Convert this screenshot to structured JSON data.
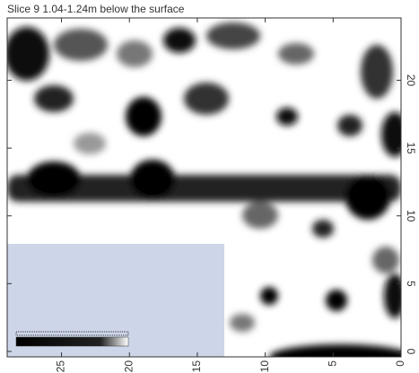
{
  "chart_data": {
    "type": "heatmap",
    "title": "Slice 9 1.04-1.24m below the surface",
    "xlim": [
      29,
      0
    ],
    "xticks": [
      25,
      20,
      15,
      10,
      5,
      0
    ],
    "ylim": [
      -0.4,
      24.6
    ],
    "yticks": [
      0,
      5,
      10,
      15,
      20
    ]
  }
}
